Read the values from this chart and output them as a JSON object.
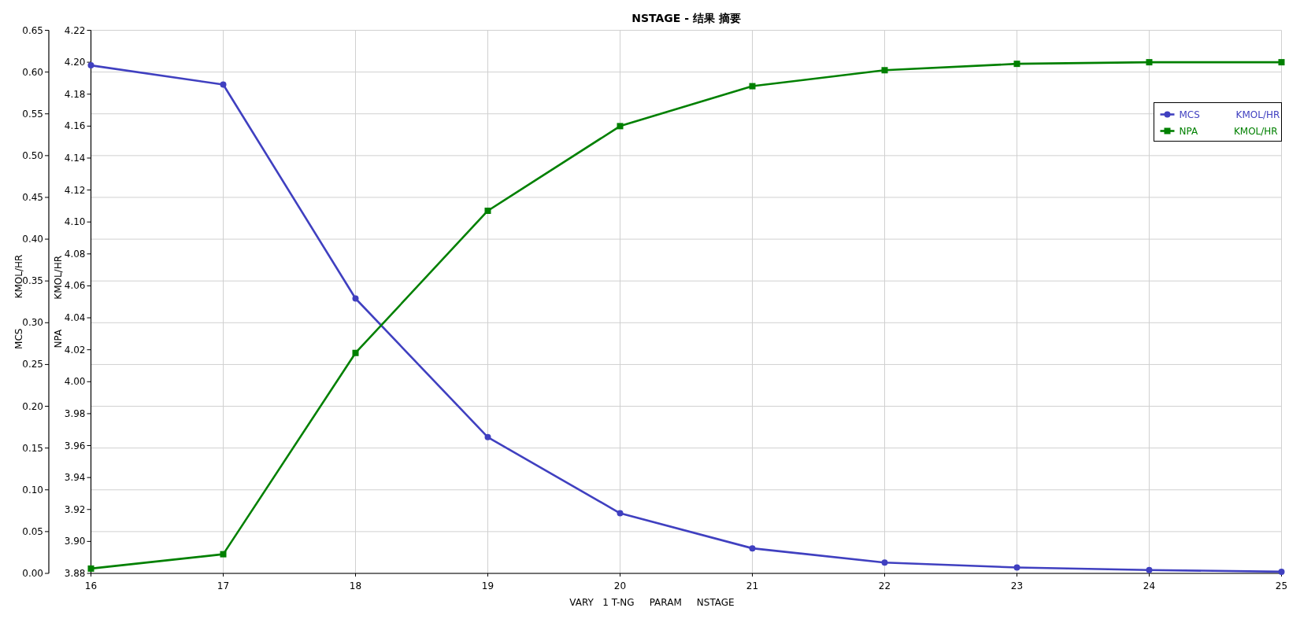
{
  "chart_data": {
    "type": "line",
    "title": "NSTAGE - 结果 摘要",
    "xlabel": "VARY   1 T-NG     PARAM     NSTAGE",
    "ylabel": "MCS          KMOL/HR",
    "y2label": "NPA          KMOL/HR",
    "x": [
      16,
      17,
      18,
      19,
      20,
      21,
      22,
      23,
      24,
      25
    ],
    "series": [
      {
        "name": "MCS            KMOL/HR",
        "color": "#4040c0",
        "marker": "circle",
        "values": [
          0.608,
          0.585,
          0.329,
          0.163,
          0.072,
          0.03,
          0.013,
          0.007,
          0.004,
          0.002
        ]
      },
      {
        "name": "NPA            KMOL/HR",
        "color": "#008000",
        "marker": "square",
        "axis": "y2",
        "values": [
          3.883,
          3.892,
          4.018,
          4.107,
          4.16,
          4.185,
          4.195,
          4.199,
          4.2,
          4.2
        ]
      }
    ],
    "xlim": [
      16,
      25
    ],
    "xticks": [
      16,
      17,
      18,
      19,
      20,
      21,
      22,
      23,
      24,
      25
    ],
    "ylim": [
      0,
      0.65
    ],
    "yticks": [
      {
        "value": 0,
        "label": "0.00"
      },
      0.05,
      {
        "value": 0.1,
        "label": "0.10"
      },
      0.15,
      {
        "value": 0.2,
        "label": "0.20"
      },
      0.25,
      {
        "value": 0.3,
        "label": "0.30"
      },
      0.35,
      {
        "value": 0.4,
        "label": "0.40"
      },
      0.45,
      {
        "value": 0.5,
        "label": "0.50"
      },
      0.55,
      {
        "value": 0.6,
        "label": "0.60"
      },
      0.65
    ],
    "y2lim": [
      3.88,
      4.22
    ],
    "y2ticks": [
      3.88,
      {
        "value": 3.9,
        "label": "3.90"
      },
      3.92,
      3.94,
      3.96,
      3.98,
      {
        "value": 4,
        "label": "4.00"
      },
      4.02,
      4.04,
      4.06,
      4.08,
      {
        "value": 4.1,
        "label": "4.10"
      },
      4.12,
      4.14,
      4.16,
      4.18,
      {
        "value": 4.2,
        "label": "4.20"
      },
      4.22
    ],
    "grid": true,
    "legend": "top right",
    "line_style": "solid"
  }
}
